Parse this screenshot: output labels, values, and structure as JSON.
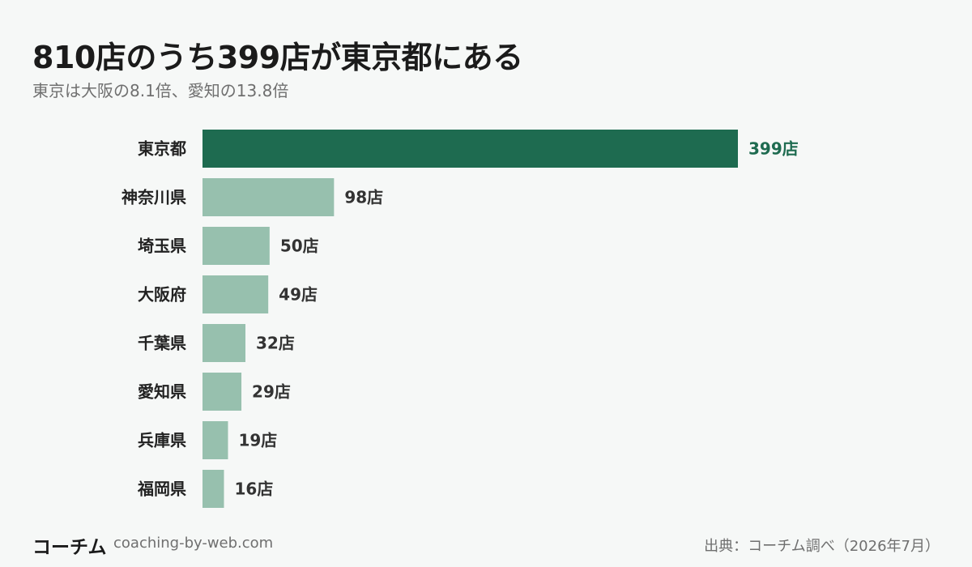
{
  "title": "810店のうち399店が東京都にある",
  "subtitle": "東京は大阪の8.1倍、愛知の13.8倍",
  "footer": {
    "brand": "コーチム",
    "url": "coaching-by-web.com",
    "source": "出典：コーチム調べ（2026年7月）"
  },
  "colors": {
    "highlight": "#1e6b50",
    "bar": "#97c0ae",
    "label": "#333333"
  },
  "chart_data": {
    "type": "bar",
    "orientation": "horizontal",
    "title": "810店のうち399店が東京都にある",
    "subtitle": "東京は大阪の8.1倍、愛知の13.8倍",
    "unit": "店",
    "categories": [
      "東京都",
      "神奈川県",
      "埼玉県",
      "大阪府",
      "千葉県",
      "愛知県",
      "兵庫県",
      "福岡県"
    ],
    "values": [
      399,
      98,
      50,
      49,
      32,
      29,
      19,
      16
    ],
    "value_labels": [
      "399店",
      "98店",
      "50店",
      "49店",
      "32店",
      "29店",
      "19店",
      "16店"
    ],
    "highlight_index": 0,
    "xlim": [
      0,
      399
    ],
    "grid": false,
    "legend": "none"
  }
}
